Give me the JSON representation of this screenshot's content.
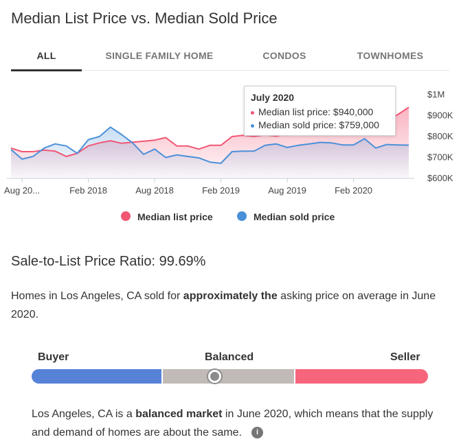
{
  "header": {
    "title": "Median List Price vs. Median Sold Price"
  },
  "tabs": [
    {
      "label": "ALL",
      "active": true
    },
    {
      "label": "SINGLE FAMILY HOME",
      "active": false
    },
    {
      "label": "CONDOS",
      "active": false
    },
    {
      "label": "TOWNHOMES",
      "active": false
    }
  ],
  "colors": {
    "list": "#f25674",
    "sold": "#4a90d9",
    "buyer": "#5682d8",
    "balanced": "#c2bab6",
    "seller": "#f7657d"
  },
  "chart_data": {
    "type": "line",
    "x": [
      "Jul 2017",
      "Aug 2017",
      "Sep 2017",
      "Oct 2017",
      "Nov 2017",
      "Dec 2017",
      "Jan 2018",
      "Feb 2018",
      "Mar 2018",
      "Apr 2018",
      "May 2018",
      "Jun 2018",
      "Jul 2018",
      "Aug 2018",
      "Sep 2018",
      "Oct 2018",
      "Nov 2018",
      "Dec 2018",
      "Jan 2019",
      "Feb 2019",
      "Mar 2019",
      "Apr 2019",
      "May 2019",
      "Jun 2019",
      "Jul 2019",
      "Aug 2019",
      "Sep 2019",
      "Oct 2019",
      "Nov 2019",
      "Dec 2019",
      "Jan 2020",
      "Feb 2020",
      "Mar 2020",
      "Apr 2020",
      "May 2020",
      "Jun 2020",
      "Jul 2020"
    ],
    "x_tick_labels": [
      "Aug 20...",
      "Feb 2018",
      "Aug 2018",
      "Feb 2019",
      "Aug 2019",
      "Feb 2020"
    ],
    "y_tick_labels": [
      "$1M",
      "$900K",
      "$800K",
      "$700K",
      "$600K"
    ],
    "ylim": [
      600000,
      1000000
    ],
    "series": [
      {
        "name": "Median list price",
        "values": [
          745000,
          728000,
          728000,
          735000,
          730000,
          705000,
          720000,
          755000,
          770000,
          780000,
          768000,
          773000,
          778000,
          783000,
          795000,
          755000,
          755000,
          740000,
          758000,
          758000,
          800000,
          806000,
          801000,
          808000,
          802000,
          812000,
          818000,
          822000,
          826000,
          828000,
          832000,
          836000,
          842000,
          856000,
          880000,
          905000,
          940000
        ]
      },
      {
        "name": "Median sold price",
        "values": [
          738000,
          692000,
          705000,
          745000,
          765000,
          755000,
          720000,
          785000,
          800000,
          845000,
          810000,
          770000,
          715000,
          740000,
          700000,
          712000,
          705000,
          698000,
          678000,
          672000,
          728000,
          730000,
          730000,
          758000,
          765000,
          748000,
          758000,
          765000,
          772000,
          770000,
          760000,
          760000,
          790000,
          745000,
          762000,
          760000,
          759000
        ]
      }
    ]
  },
  "tooltip": {
    "title": "July 2020",
    "list_line": "Median list price: $940,000",
    "sold_line": "Median sold price: $759,000"
  },
  "legend": {
    "list": "Median list price",
    "sold": "Median sold price"
  },
  "ratio": {
    "title": "Sale-to-List Price Ratio: 99.69%",
    "text_pre": "Homes in Los Angeles, CA sold for ",
    "text_bold": "approximately the",
    "text_post": " asking price on average in June 2020."
  },
  "gauge": {
    "buyer": "Buyer",
    "balanced": "Balanced",
    "seller": "Seller",
    "position_pct": 46.2
  },
  "market": {
    "text_pre": "Los Angeles, CA is a ",
    "text_bold": "balanced market",
    "text_post": " in June 2020, which means that the supply and demand of homes are about the same.",
    "info_symbol": "i"
  }
}
